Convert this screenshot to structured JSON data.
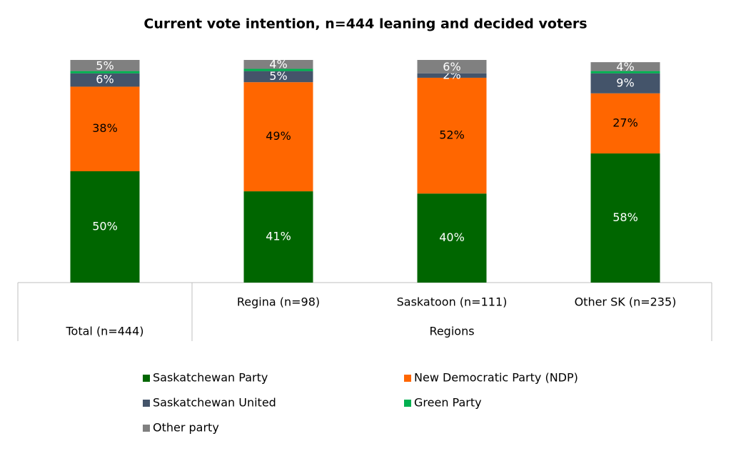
{
  "chart_data": {
    "type": "stacked_bar",
    "title": "Current vote intention, n=444 leaning and decided voters",
    "categories": [
      "Total (n=444)",
      "Regina (n=98)",
      "Saskatoon (n=111)",
      "Other SK (n=235)"
    ],
    "category_group": "Regions",
    "ylim": [
      0,
      100
    ],
    "series": [
      {
        "name": "Saskatchewan Party",
        "color": "#006600",
        "values": [
          50,
          41,
          40,
          58
        ],
        "value_labels": [
          "50%",
          "41%",
          "40%",
          "58%"
        ]
      },
      {
        "name": "New Democratic Party (NDP)",
        "color": "#ff6600",
        "values": [
          38,
          49,
          52,
          27
        ],
        "value_labels": [
          "38%",
          "49%",
          "52%",
          "27%"
        ]
      },
      {
        "name": "Saskatchewan United",
        "color": "#44546a",
        "values": [
          6,
          5,
          2,
          9
        ],
        "value_labels": [
          "6%",
          "5%",
          "2%",
          "9%"
        ]
      },
      {
        "name": "Green Party",
        "color": "#00b050",
        "values": [
          1,
          1,
          0,
          1
        ]
      },
      {
        "name": "Other party",
        "color": "#808080",
        "values": [
          5,
          4,
          6,
          4
        ],
        "value_labels": [
          "5%",
          "4%",
          "6%",
          "4%"
        ]
      }
    ]
  }
}
